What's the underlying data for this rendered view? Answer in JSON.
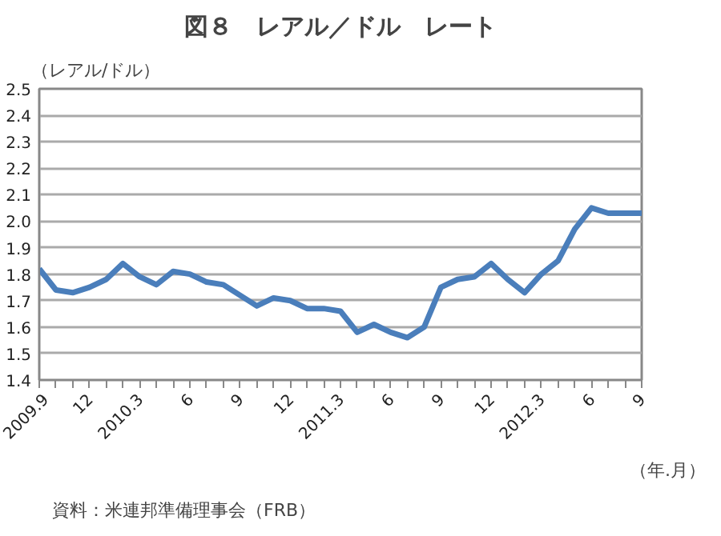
{
  "chart_data": {
    "type": "line",
    "title": "図８　レアル／ドル　レート",
    "ylabel": "（レアル/ドル）",
    "xlabel": "（年.月）",
    "annotations": [
      "資料：米連邦準備理事会（FRB）"
    ],
    "categories": [
      "2009.9",
      null,
      null,
      "12",
      null,
      null,
      "2010.3",
      null,
      null,
      "6",
      null,
      null,
      "9",
      null,
      null,
      "12",
      null,
      null,
      "2011.3",
      null,
      null,
      "6",
      null,
      null,
      "9",
      null,
      null,
      "12",
      null,
      null,
      "2012.3",
      null,
      null,
      "6",
      null,
      null,
      "9"
    ],
    "series": [
      {
        "color": "#4a7ebb",
        "values": [
          1.82,
          1.74,
          1.73,
          1.75,
          1.78,
          1.84,
          1.79,
          1.76,
          1.81,
          1.8,
          1.77,
          1.76,
          1.72,
          1.68,
          1.71,
          1.7,
          1.67,
          1.67,
          1.66,
          1.58,
          1.61,
          1.58,
          1.56,
          1.6,
          1.75,
          1.78,
          1.79,
          1.84,
          1.78,
          1.73,
          1.8,
          1.85,
          1.97,
          2.05,
          2.03,
          2.03,
          2.03
        ]
      }
    ],
    "ylim": [
      1.4,
      2.5
    ],
    "yticks": [
      1.4,
      1.5,
      1.6,
      1.7,
      1.8,
      1.9,
      {
        "value": 2.0,
        "label": "2.0"
      },
      2.1,
      2.2,
      2.3,
      2.4,
      2.5
    ],
    "grid": "y",
    "marker": "none",
    "line_style": "solid"
  }
}
